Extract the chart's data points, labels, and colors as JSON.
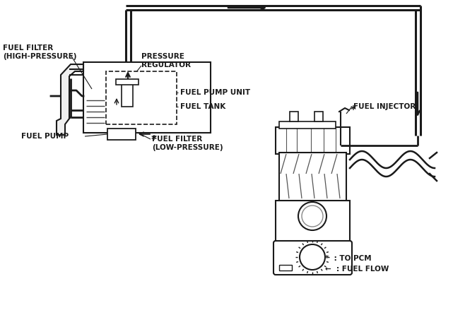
{
  "bg_color": "#ffffff",
  "line_color": "#1a1a1a",
  "text_color": "#1a1a1a",
  "labels": {
    "fuel_filter_high": "FUEL FILTER\n(HIGH-PRESSURE)",
    "pressure_reg": "PRESSURE\nREGULATOR",
    "fuel_pump_unit": "FUEL PUMP UNIT",
    "fuel_tank": "FUEL TANK",
    "fuel_pump": "FUEL PUMP",
    "fuel_filter_low": "FUEL FILTER\n(LOW-PRESSURE)",
    "fuel_injector": "FUEL INJECTOR",
    "legend1": "*  : TO PCM",
    "legend2": "←  : FUEL FLOW"
  },
  "figsize": [
    6.41,
    4.46
  ],
  "dpi": 100
}
